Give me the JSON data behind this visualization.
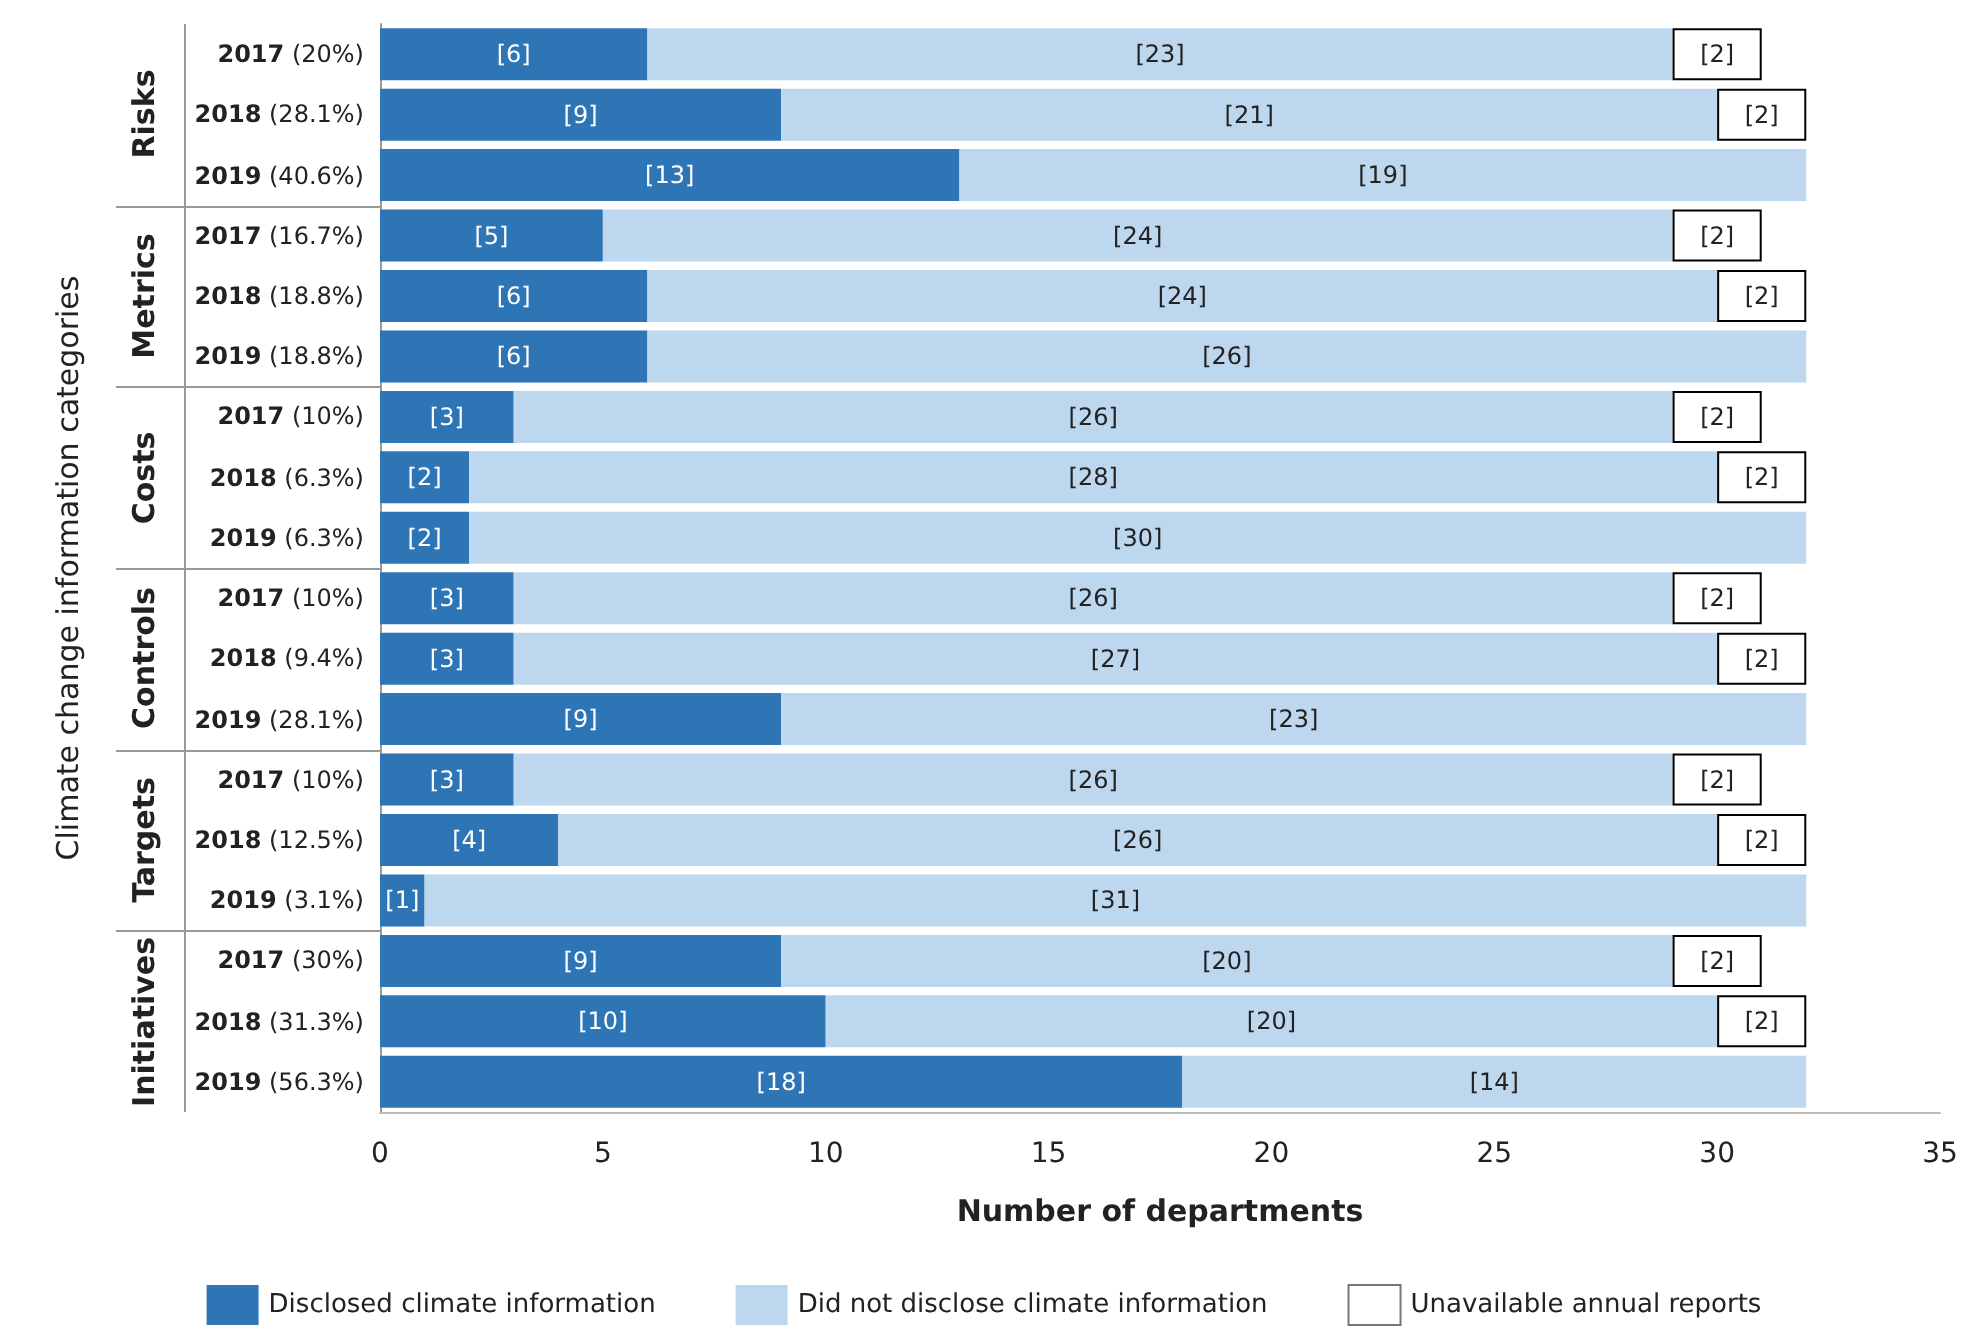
{
  "chart_data": {
    "type": "bar",
    "orientation": "horizontal",
    "stacked": true,
    "xlabel": "Number of departments",
    "ylabel": "Climate change information categories",
    "categories": [
      "2017 (20%)",
      "2018 (28.1%)",
      "2019 (40.6%)",
      "2017 (16.7%)",
      "2018 (18.8%)",
      "2019 (18.8%)",
      "2017 (10%)",
      "2018 (6.3%)",
      "2019 (6.3%)",
      "2017 (10%)",
      "2018 (9.4%)",
      "2019 (28.1%)",
      "2017 (10%)",
      "2018 (12.5%)",
      "2019 (3.1%)",
      "2017 (30%)",
      "2018 (31.3%)",
      "2019 (56.3%)"
    ],
    "annotations": [
      "Risks",
      "Metrics",
      "Costs",
      "Controls",
      "Targets",
      "Initiatives"
    ],
    "series": [
      {
        "name": "Disclosed climate information",
        "color": "#2e75b6",
        "values": [
          6,
          9,
          13,
          5,
          6,
          6,
          3,
          2,
          2,
          3,
          3,
          9,
          3,
          4,
          1,
          9,
          10,
          18
        ],
        "value_labels": [
          "[6]",
          "[9]",
          "[13]",
          "[5]",
          "[6]",
          "[6]",
          "[3]",
          "[2]",
          "[2]",
          "[3]",
          "[3]",
          "[9]",
          "[3]",
          "[4]",
          "[1]",
          "[9]",
          "[10]",
          "[18]"
        ]
      },
      {
        "name": "Did not disclose climate information",
        "color": "#bdd7ee",
        "values": [
          23,
          21,
          19,
          24,
          24,
          26,
          26,
          28,
          30,
          26,
          27,
          23,
          26,
          26,
          31,
          20,
          20,
          14
        ],
        "value_labels": [
          "[23]",
          "[21]",
          "[19]",
          "[24]",
          "[24]",
          "[26]",
          "[26]",
          "[28]",
          "[30]",
          "[26]",
          "[27]",
          "[23]",
          "[26]",
          "[26]",
          "[31]",
          "[20]",
          "[20]",
          "[14]"
        ]
      },
      {
        "name": "Unavailable annual reports",
        "color": "#ffffff",
        "values": [
          2,
          2,
          null,
          2,
          2,
          null,
          2,
          2,
          null,
          2,
          2,
          null,
          2,
          2,
          null,
          2,
          2,
          null
        ],
        "value_labels": [
          "[2]",
          "[2]",
          null,
          "[2]",
          "[2]",
          null,
          "[2]",
          "[2]",
          null,
          "[2]",
          "[2]",
          null,
          "[2]",
          "[2]",
          null,
          "[2]",
          "[2]",
          null
        ]
      }
    ],
    "xlim": [
      0,
      35
    ],
    "xticks": [
      0,
      5,
      10,
      15,
      20,
      25,
      30,
      35
    ],
    "grid": false,
    "legend": "bottom"
  }
}
